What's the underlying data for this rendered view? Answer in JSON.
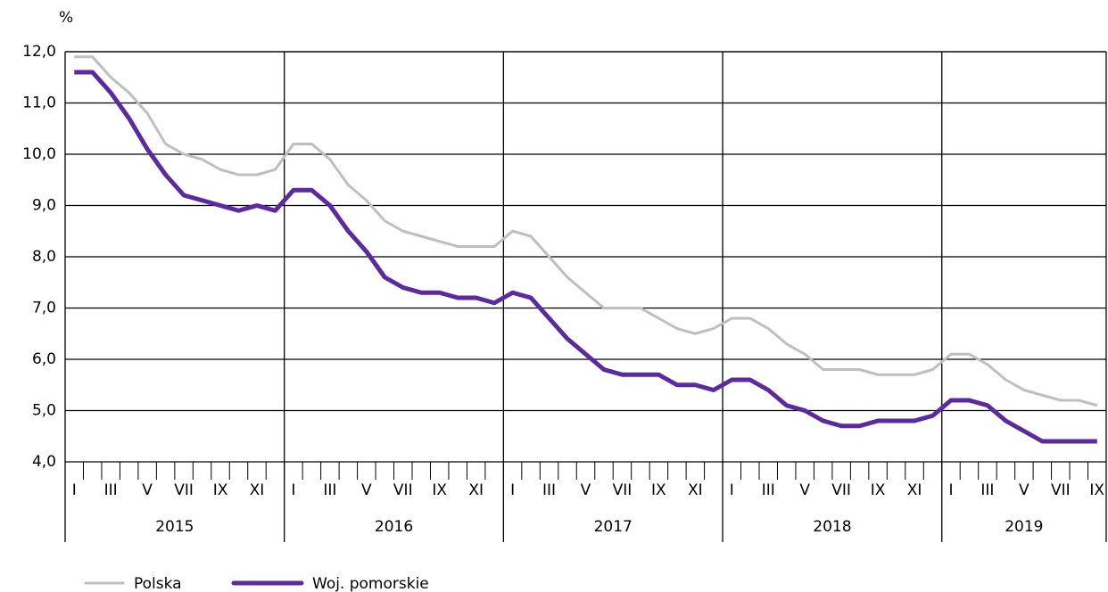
{
  "chart_data": {
    "type": "line",
    "ylabel": "%",
    "categories": [
      "I",
      null,
      "III",
      null,
      "V",
      null,
      "VII",
      null,
      "IX",
      null,
      "XI",
      null,
      "I",
      null,
      "III",
      null,
      "V",
      null,
      "VII",
      null,
      "IX",
      null,
      "XI",
      null,
      "I",
      null,
      "III",
      null,
      "V",
      null,
      "VII",
      null,
      "IX",
      null,
      "XI",
      null,
      "I",
      null,
      "III",
      null,
      "V",
      null,
      "VII",
      null,
      "IX",
      null,
      "XI",
      null,
      "I",
      null,
      "III",
      null,
      "V",
      null,
      "VII",
      null,
      "IX"
    ],
    "years": [
      "2015",
      "2016",
      "2017",
      "2018",
      "2019"
    ],
    "series": [
      {
        "name": "Polska",
        "color": "#bfbfbf",
        "width": 3,
        "values": [
          11.9,
          11.9,
          11.5,
          11.2,
          10.8,
          10.2,
          10.0,
          9.9,
          9.7,
          9.6,
          9.6,
          9.7,
          10.2,
          10.2,
          9.9,
          9.4,
          9.1,
          8.7,
          8.5,
          8.4,
          8.3,
          8.2,
          8.2,
          8.2,
          8.5,
          8.4,
          8.0,
          7.6,
          7.3,
          7.0,
          7.0,
          7.0,
          6.8,
          6.6,
          6.5,
          6.6,
          6.8,
          6.8,
          6.6,
          6.3,
          6.1,
          5.8,
          5.8,
          5.8,
          5.7,
          5.7,
          5.7,
          5.8,
          6.1,
          6.1,
          5.9,
          5.6,
          5.4,
          5.3,
          5.2,
          5.2,
          5.1
        ]
      },
      {
        "name": "Woj. pomorskie",
        "color": "#5b2a9e",
        "width": 5,
        "values": [
          11.6,
          11.6,
          11.2,
          10.7,
          10.1,
          9.6,
          9.2,
          9.1,
          9.0,
          8.9,
          9.0,
          8.9,
          9.3,
          9.3,
          9.0,
          8.5,
          8.1,
          7.6,
          7.4,
          7.3,
          7.3,
          7.2,
          7.2,
          7.1,
          7.3,
          7.2,
          6.8,
          6.4,
          6.1,
          5.8,
          5.7,
          5.7,
          5.7,
          5.5,
          5.5,
          5.4,
          5.6,
          5.6,
          5.4,
          5.1,
          5.0,
          4.8,
          4.7,
          4.7,
          4.8,
          4.8,
          4.8,
          4.9,
          5.2,
          5.2,
          5.1,
          4.8,
          4.6,
          4.4,
          4.4,
          4.4,
          4.4
        ]
      }
    ],
    "ylim": [
      4,
      12
    ],
    "yticks": [
      {
        "value": 4,
        "label": "4,0"
      },
      {
        "value": 5,
        "label": "5,0"
      },
      {
        "value": 6,
        "label": "6,0"
      },
      {
        "value": 7,
        "label": "7,0"
      },
      {
        "value": 8,
        "label": "8,0"
      },
      {
        "value": 9,
        "label": "9,0"
      },
      {
        "value": 10,
        "label": "10,0"
      },
      {
        "value": 11,
        "label": "11,0"
      },
      {
        "value": 12,
        "label": "12,0"
      }
    ],
    "grid": true,
    "legend": "bottom"
  }
}
